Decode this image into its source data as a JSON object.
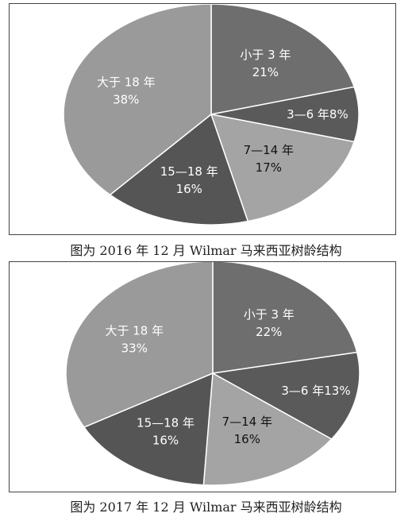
{
  "chart_data": [
    {
      "type": "pie",
      "title": "图为 2016 年 12 月 Wilmar 马来西亚树龄结构",
      "slices": [
        {
          "label": "小于 3 年",
          "value": 21,
          "value_label": "21%",
          "color": "#6e6e6e",
          "text_color": "#ffffff"
        },
        {
          "label": "3—6 年",
          "value": 8,
          "value_label": "8%",
          "color": "#5a5a5a",
          "text_color": "#ffffff",
          "inline": true
        },
        {
          "label": "7—14 年",
          "value": 17,
          "value_label": "17%",
          "color": "#a4a4a4",
          "text_color": "#111111"
        },
        {
          "label": "15—18 年",
          "value": 16,
          "value_label": "16%",
          "color": "#555555",
          "text_color": "#ffffff"
        },
        {
          "label": "大于 18 年",
          "value": 38,
          "value_label": "38%",
          "color": "#9a9a9a",
          "text_color": "#ffffff"
        }
      ]
    },
    {
      "type": "pie",
      "title": "图为 2017 年 12 月 Wilmar 马来西亚树龄结构",
      "slices": [
        {
          "label": "小于 3 年",
          "value": 22,
          "value_label": "22%",
          "color": "#6e6e6e",
          "text_color": "#ffffff"
        },
        {
          "label": "3—6 年",
          "value": 13,
          "value_label": "13%",
          "color": "#5a5a5a",
          "text_color": "#ffffff",
          "inline": true
        },
        {
          "label": "7—14 年",
          "value": 16,
          "value_label": "16%",
          "color": "#a4a4a4",
          "text_color": "#111111"
        },
        {
          "label": "15—18 年",
          "value": 16,
          "value_label": "16%",
          "color": "#555555",
          "text_color": "#ffffff"
        },
        {
          "label": "大于 18 年",
          "value": 33,
          "value_label": "33%",
          "color": "#9a9a9a",
          "text_color": "#ffffff"
        }
      ]
    }
  ]
}
